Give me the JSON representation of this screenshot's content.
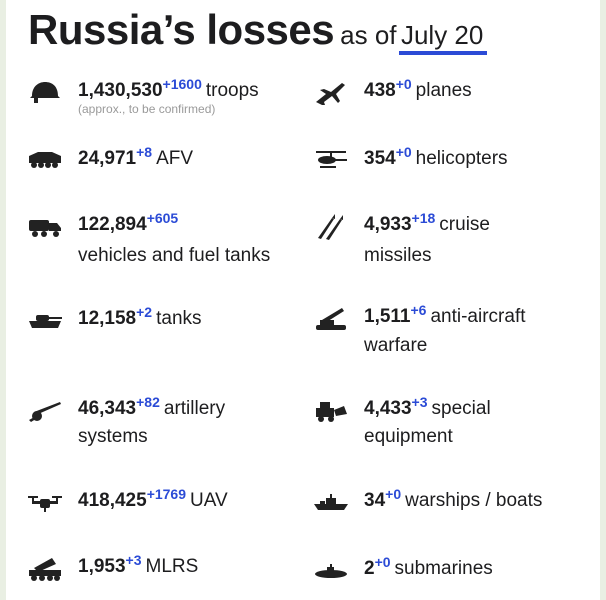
{
  "title": {
    "main": "Russia’s losses",
    "sub": "as of",
    "date": "July 20"
  },
  "colors": {
    "accent": "#2b4bd6",
    "text": "#1d1d1f",
    "note": "#9a9a9a"
  },
  "items": [
    {
      "icon": "helmet-icon",
      "value": "1,430,530",
      "delta": "+1600",
      "label": "troops",
      "line2": "",
      "note": "(approx., to be confirmed)"
    },
    {
      "icon": "plane-icon",
      "value": "438",
      "delta": "+0",
      "label": "planes",
      "line2": ""
    },
    {
      "icon": "afv-icon",
      "value": "24,971",
      "delta": "+8",
      "label": "AFV",
      "line2": ""
    },
    {
      "icon": "helicopter-icon",
      "value": "354",
      "delta": "+0",
      "label": "helicopters",
      "line2": ""
    },
    {
      "icon": "truck-icon",
      "value": "122,894",
      "delta": "+605",
      "label": "",
      "line2": "vehicles and fuel tanks"
    },
    {
      "icon": "missile-icon",
      "value": "4,933",
      "delta": "+18",
      "label": "cruise",
      "line2": "missiles"
    },
    {
      "icon": "tank-icon",
      "value": "12,158",
      "delta": "+2",
      "label": "tanks",
      "line2": ""
    },
    {
      "icon": "anti-aircraft-icon",
      "value": "1,511",
      "delta": "+6",
      "label": "anti-aircraft",
      "line2": "warfare"
    },
    {
      "icon": "artillery-icon",
      "value": "46,343",
      "delta": "+82",
      "label": "artillery",
      "line2": "systems"
    },
    {
      "icon": "special-equipment-icon",
      "value": "4,433",
      "delta": "+3",
      "label": "special",
      "line2": "equipment"
    },
    {
      "icon": "drone-icon",
      "value": "418,425",
      "delta": "+1769",
      "label": "UAV",
      "line2": ""
    },
    {
      "icon": "warship-icon",
      "value": "34",
      "delta": "+0",
      "label": "warships / boats",
      "line2": ""
    },
    {
      "icon": "mlrs-icon",
      "value": "1,953",
      "delta": "+3",
      "label": "MLRS",
      "line2": ""
    },
    {
      "icon": "submarine-icon",
      "value": "2",
      "delta": "+0",
      "label": "submarines",
      "line2": ""
    }
  ]
}
